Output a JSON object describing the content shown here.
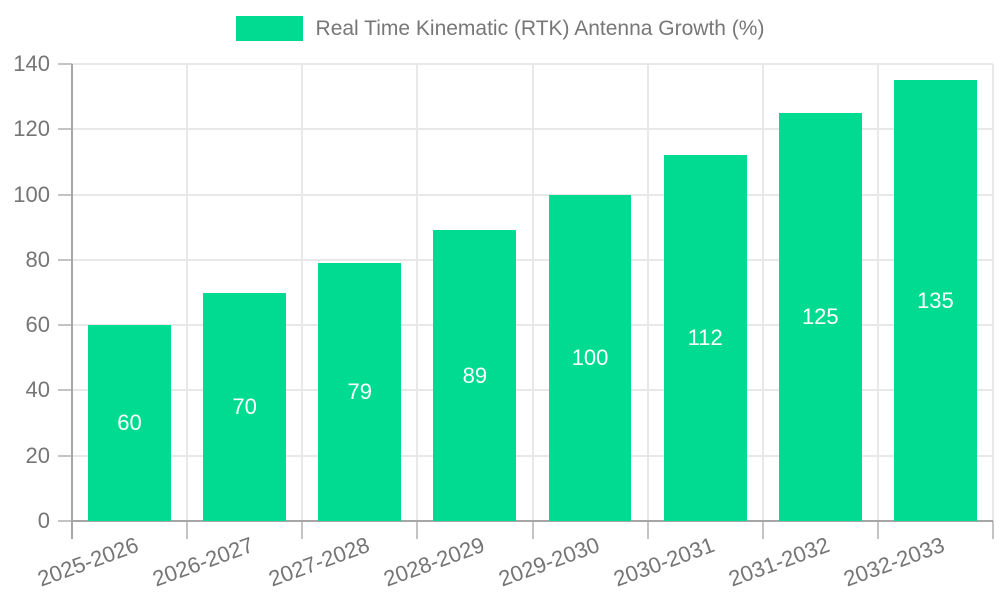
{
  "chart_data": {
    "type": "bar",
    "title": "Real Time Kinematic (RTK) Antenna Growth (%)",
    "categories": [
      "2025-2026",
      "2026-2027",
      "2027-2028",
      "2028-2029",
      "2029-2030",
      "2030-2031",
      "2031-2032",
      "2032-2033"
    ],
    "values": [
      60,
      70,
      79,
      89,
      100,
      112,
      125,
      135
    ],
    "xlabel": "",
    "ylabel": "",
    "ylim": [
      0,
      140
    ],
    "ytick_step": 20,
    "yticks": [
      0,
      20,
      40,
      60,
      80,
      100,
      120,
      140
    ],
    "grid": true,
    "legend_position": "top",
    "value_labels": "inside-center",
    "colors": {
      "bar": "#00DB92",
      "grid": "#e8e8e8",
      "axis": "#a6a6a6",
      "tick": "#c4c4c4",
      "axis_text": "#757575",
      "legend_text": "#777777",
      "value_label": "#ffffff",
      "background": "#ffffff"
    }
  }
}
